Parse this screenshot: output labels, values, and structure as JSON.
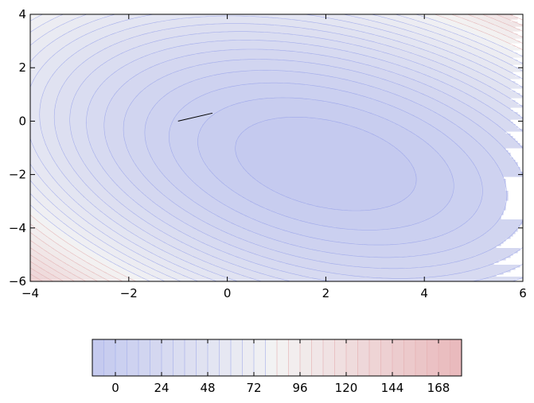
{
  "chart_data": {
    "type": "contour",
    "title": "",
    "xlabel": "",
    "ylabel": "",
    "xlim": [
      -4,
      6
    ],
    "ylim": [
      -6,
      4
    ],
    "x_ticks": [
      -4,
      -2,
      0,
      2,
      4,
      6
    ],
    "y_ticks": [
      -6,
      -4,
      -2,
      0,
      2,
      4
    ],
    "x_tick_labels": [
      "−4",
      "−2",
      "0",
      "2",
      "4",
      "6"
    ],
    "y_tick_labels": [
      "−6",
      "−4",
      "−2",
      "0",
      "2",
      "4"
    ],
    "function": {
      "form": "quadratic",
      "center": [
        2,
        -1.6
      ],
      "coef_xx": 2.0,
      "coef_xy": 1.4,
      "coef_yy": 2.2,
      "offset": -12
    },
    "contour_levels": [
      -12,
      -6,
      0,
      6,
      12,
      18,
      24,
      30,
      36,
      42,
      48,
      54,
      60,
      66,
      72,
      78,
      84,
      90,
      96,
      102,
      108,
      114,
      120,
      126,
      132,
      138,
      144,
      150,
      156,
      162,
      168,
      174,
      180
    ],
    "colormap": "coolwarm",
    "color_min": "#c3c9ef",
    "color_mid": "#f3f3f3",
    "color_max": "#e9b8bb",
    "path": {
      "points": [
        [
          -1.0,
          0.0
        ],
        [
          -0.3,
          0.3
        ]
      ],
      "color": "#000000"
    },
    "colorbar": {
      "orientation": "horizontal",
      "range": [
        -12,
        180
      ],
      "tick_values": [
        0,
        24,
        48,
        72,
        96,
        120,
        144,
        168
      ],
      "tick_labels": [
        "0",
        "24",
        "48",
        "72",
        "96",
        "120",
        "144",
        "168"
      ]
    },
    "grid": false,
    "legend": "none"
  }
}
